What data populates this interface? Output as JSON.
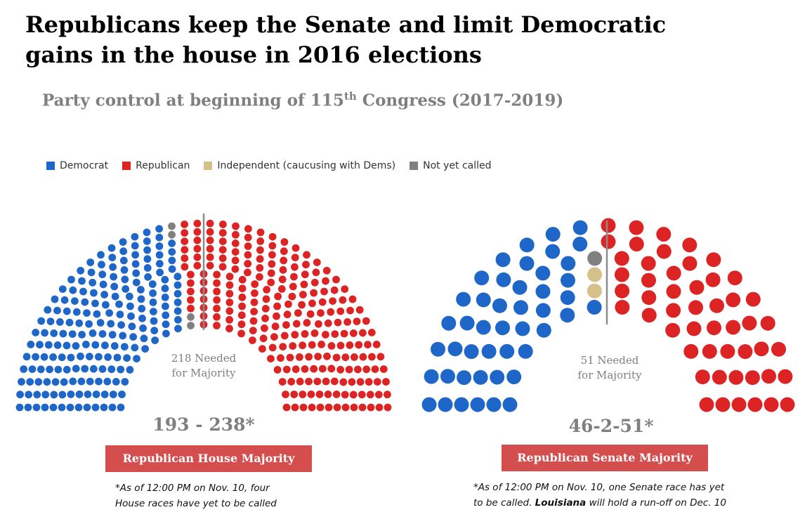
{
  "title": "Republicans keep the Senate and limit Democratic gains in the house in 2016 elections",
  "subtitle": {
    "before": "Party control at beginning of 115",
    "sup": "th",
    "after": " Congress (2017-2019)"
  },
  "legend": [
    {
      "label": "Democrat",
      "color": "#1f66c9"
    },
    {
      "label": "Republican",
      "color": "#dd2424"
    },
    {
      "label": "Independent (caucusing with Dems)",
      "color": "#d6c08a"
    },
    {
      "label": "Not yet called",
      "color": "#808080"
    }
  ],
  "chart_data": [
    {
      "type": "parliament",
      "chamber": "House",
      "series": [
        {
          "name": "Democrat",
          "value": 193,
          "color": "#1f66c9"
        },
        {
          "name": "Not yet called",
          "value": 4,
          "color": "#808080"
        },
        {
          "name": "Republican",
          "value": 238,
          "color": "#dd2424"
        }
      ],
      "majority_label": [
        "218 Needed",
        "for Majority"
      ],
      "score": "193 - 238*",
      "banner": "Republican House Majority",
      "note": [
        "*As of 12:00 PM on Nov. 10, four",
        "House races have yet to be called"
      ]
    },
    {
      "type": "parliament",
      "chamber": "Senate",
      "series": [
        {
          "name": "Democrat",
          "value": 46,
          "color": "#1f66c9"
        },
        {
          "name": "Independent (caucusing with Dems)",
          "value": 2,
          "color": "#d6c08a"
        },
        {
          "name": "Not yet called",
          "value": 1,
          "color": "#808080"
        },
        {
          "name": "Republican",
          "value": 51,
          "color": "#dd2424"
        }
      ],
      "majority_label": [
        "51 Needed",
        "for Majority"
      ],
      "score": "46-2-51*",
      "banner": "Republican Senate Majority",
      "note_parts": [
        "*As of 12:00 PM on Nov. 10, one Senate race has yet",
        "to be called. ",
        "Louisiana",
        " will hold a run-off on Dec. 10"
      ]
    }
  ]
}
